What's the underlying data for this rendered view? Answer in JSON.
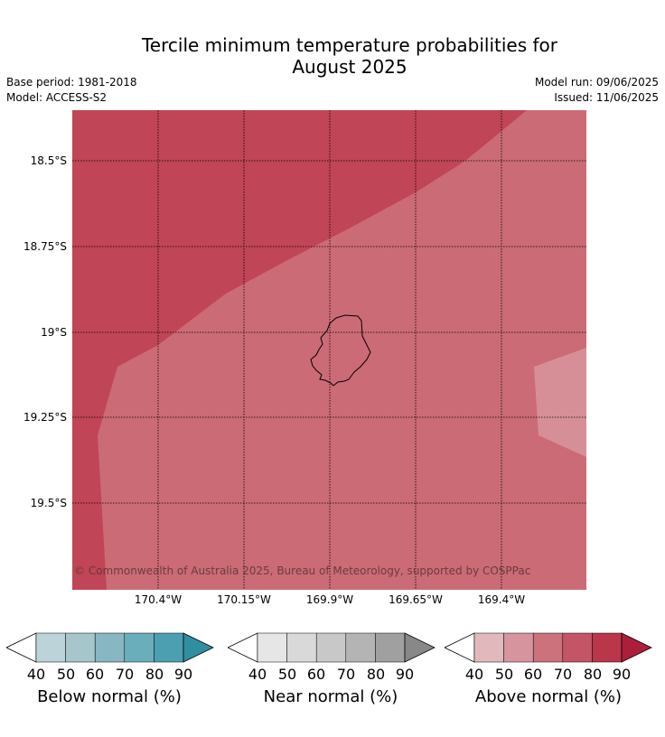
{
  "header": {
    "title_line1": "Tercile minimum temperature probabilities for",
    "title_line2": "August 2025",
    "base_period": "Base period: 1981-2018",
    "model": "Model: ACCESS-S2",
    "model_run": "Model run: 09/06/2025",
    "issued": "Issued: 11/06/2025"
  },
  "map": {
    "lat_labels": [
      "18.5°S",
      "18.75°S",
      "19°S",
      "19.25°S",
      "19.5°S"
    ],
    "lon_labels": [
      "170.4°W",
      "170.15°W",
      "169.9°W",
      "169.65°W",
      "169.4°W"
    ],
    "copyright": "© Commonwealth of Australia 2025, Bureau of Meteorology, supported by COSPPac",
    "colors": {
      "above_80_90": "#c04556",
      "above_70_80": "#cb6b75",
      "above_50_60": "#d68f97",
      "coastline": "#000000"
    }
  },
  "colorbars": [
    {
      "label": "Below normal (%)",
      "ticks": [
        "40",
        "50",
        "60",
        "70",
        "80",
        "90"
      ],
      "colors": [
        "#ffffff",
        "#bdd3da",
        "#a6c6cc",
        "#88b6c2",
        "#6aaebc",
        "#4b9fb0",
        "#2f8fa1"
      ]
    },
    {
      "label": "Near normal (%)",
      "ticks": [
        "40",
        "50",
        "60",
        "70",
        "80",
        "90"
      ],
      "colors": [
        "#ffffff",
        "#e6e6e6",
        "#d9d9d9",
        "#c8c8c8",
        "#b4b4b4",
        "#a0a0a0",
        "#888888"
      ]
    },
    {
      "label": "Above normal (%)",
      "ticks": [
        "40",
        "50",
        "60",
        "70",
        "80",
        "90"
      ],
      "colors": [
        "#ffffff",
        "#e1b9bd",
        "#d6959e",
        "#cc727c",
        "#c35566",
        "#b9364b",
        "#ad1e3b"
      ]
    }
  ]
}
